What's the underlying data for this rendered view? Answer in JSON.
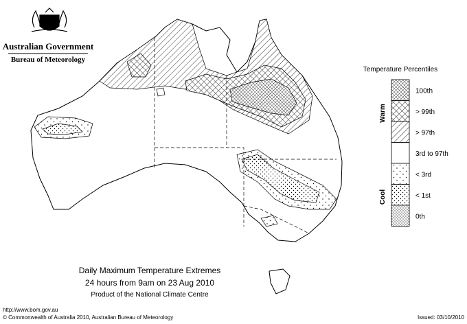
{
  "header": {
    "government": "Australian Government",
    "bureau": "Bureau of Meteorology"
  },
  "legend": {
    "title": "Temperature Percentiles",
    "warm": "Warm",
    "cool": "Cool",
    "items": [
      "100th",
      "> 99th",
      "> 97th",
      "3rd to 97th",
      "< 3rd",
      "< 1st",
      "0th"
    ]
  },
  "caption": {
    "title": "Daily Maximum Temperature Extremes",
    "period": "24 hours from 9am on 23 Aug 2010",
    "product": "Product of the National Climate Centre"
  },
  "footer": {
    "url": "http://www.bom.gov.au",
    "copyright": "© Commonwealth of Australia 2010, Australian Bureau of Meteorology",
    "issued": "Issued: 03/10/2010"
  }
}
